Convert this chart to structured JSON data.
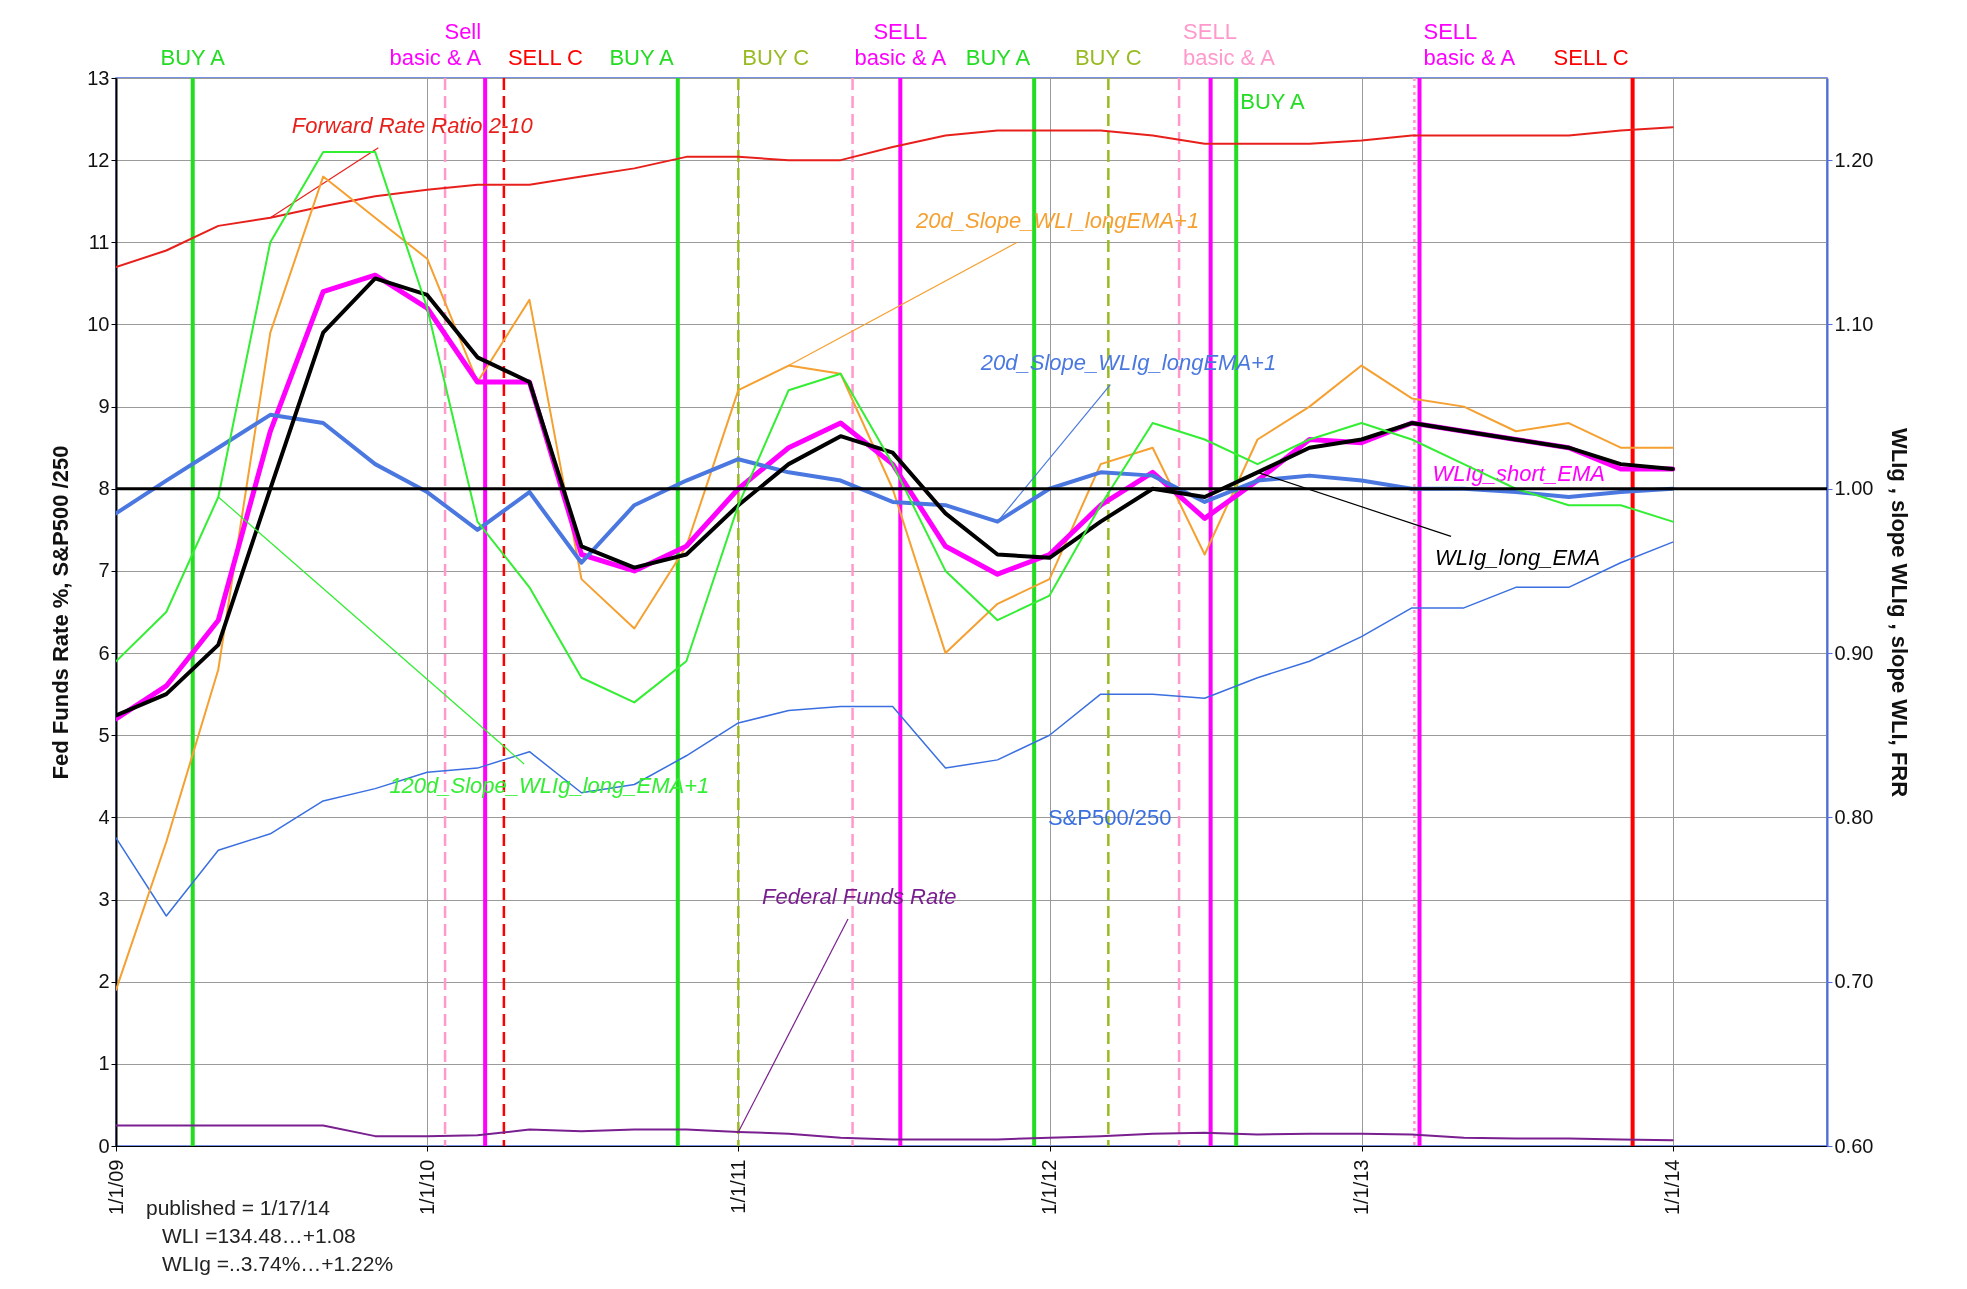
{
  "chart_data": {
    "type": "line",
    "ylabel": "Fed Funds Rate %,     S&P500 /250",
    "y2label": "WLIg ,  slope WLIg ,  slope WLI, FRR",
    "x": [
      "2009-01",
      "2009-03",
      "2009-05",
      "2009-07",
      "2009-09",
      "2009-11",
      "2010-01",
      "2010-03",
      "2010-05",
      "2010-07",
      "2010-09",
      "2010-11",
      "2011-01",
      "2011-03",
      "2011-05",
      "2011-07",
      "2011-09",
      "2011-11",
      "2012-01",
      "2012-03",
      "2012-05",
      "2012-07",
      "2012-09",
      "2012-11",
      "2013-01",
      "2013-03",
      "2013-05",
      "2013-07",
      "2013-09",
      "2013-11",
      "2014-01"
    ],
    "xlim": [
      "2009-01-01",
      "2014-07-01"
    ],
    "xticks": [
      {
        "value": "2009-01-01",
        "label": "1/1/09"
      },
      {
        "value": "2010-01-01",
        "label": "1/1/10"
      },
      {
        "value": "2011-01-01",
        "label": "1/1/11"
      },
      {
        "value": "2012-01-01",
        "label": "1/1/12"
      },
      {
        "value": "2013-01-01",
        "label": "1/1/13"
      },
      {
        "value": "2014-01-01",
        "label": "1/1/14"
      }
    ],
    "ylim": [
      0,
      13
    ],
    "yticks": [
      0,
      1,
      2,
      3,
      4,
      5,
      6,
      7,
      8,
      9,
      10,
      11,
      12,
      13
    ],
    "y2lim": [
      0.6,
      1.25
    ],
    "y2ticks": [
      {
        "value": 0.6,
        "label": "0.60"
      },
      {
        "value": 0.7,
        "label": "0.70"
      },
      {
        "value": 0.8,
        "label": "0.80"
      },
      {
        "value": 0.9,
        "label": "0.90"
      },
      {
        "value": 1.0,
        "label": "1.00"
      },
      {
        "value": 1.1,
        "label": "1.10"
      },
      {
        "value": 1.2,
        "label": "1.20"
      }
    ],
    "grid": true,
    "series": [
      {
        "name": "Forward Rate Ratio 2-10",
        "color": "#e8201c",
        "axis": "y2",
        "values": [
          1.135,
          1.145,
          1.16,
          1.165,
          1.172,
          1.178,
          1.182,
          1.185,
          1.185,
          1.19,
          1.195,
          1.202,
          1.202,
          1.2,
          1.2,
          1.208,
          1.215,
          1.218,
          1.218,
          1.218,
          1.215,
          1.21,
          1.21,
          1.21,
          1.212,
          1.215,
          1.215,
          1.215,
          1.215,
          1.218,
          1.22
        ]
      },
      {
        "name": "20d_Slope_WLI_longEMA+1",
        "color": "#f5a030",
        "axis": "y2",
        "values": [
          0.695,
          0.785,
          0.89,
          1.095,
          1.19,
          1.165,
          1.14,
          1.065,
          1.115,
          0.945,
          0.915,
          0.965,
          1.06,
          1.075,
          1.07,
          1.0,
          0.9,
          0.93,
          0.945,
          1.015,
          1.025,
          0.96,
          1.03,
          1.05,
          1.075,
          1.055,
          1.05,
          1.035,
          1.04,
          1.025,
          1.025
        ]
      },
      {
        "name": "WLIg_short_EMA",
        "color": "#ff00ff",
        "axis": "y2",
        "values": [
          0.86,
          0.88,
          0.92,
          1.035,
          1.12,
          1.13,
          1.11,
          1.065,
          1.065,
          0.96,
          0.95,
          0.965,
          1.0,
          1.025,
          1.04,
          1.015,
          0.965,
          0.948,
          0.96,
          0.99,
          1.01,
          0.982,
          1.005,
          1.03,
          1.028,
          1.04,
          1.035,
          1.03,
          1.025,
          1.012,
          1.012
        ]
      },
      {
        "name": "20d_Slope_WLIg_longEMA+1",
        "color": "#4a78e0",
        "axis": "y2",
        "values": [
          0.985,
          1.005,
          1.025,
          1.045,
          1.04,
          1.015,
          0.998,
          0.975,
          0.998,
          0.955,
          0.99,
          1.005,
          1.018,
          1.01,
          1.005,
          0.992,
          0.99,
          0.98,
          1.0,
          1.01,
          1.008,
          0.992,
          1.005,
          1.008,
          1.005,
          1.0,
          1.0,
          0.998,
          0.995,
          0.998,
          1.0
        ]
      },
      {
        "name": "WLIg_long_EMA",
        "color": "#000000",
        "axis": "y2",
        "values": [
          0.862,
          0.875,
          0.905,
          1.0,
          1.095,
          1.128,
          1.118,
          1.08,
          1.065,
          0.965,
          0.952,
          0.96,
          0.99,
          1.015,
          1.032,
          1.022,
          0.985,
          0.96,
          0.958,
          0.98,
          1.0,
          0.995,
          1.01,
          1.025,
          1.03,
          1.04,
          1.035,
          1.03,
          1.025,
          1.015,
          1.012
        ]
      },
      {
        "name": "120d_Slope_WLIg_long_EMA+1",
        "color": "#33ee33",
        "axis": "y2",
        "values": [
          0.895,
          0.925,
          0.995,
          1.15,
          1.205,
          1.205,
          1.11,
          0.98,
          0.94,
          0.885,
          0.87,
          0.895,
          0.99,
          1.06,
          1.07,
          1.015,
          0.95,
          0.92,
          0.935,
          0.99,
          1.04,
          1.03,
          1.015,
          1.03,
          1.04,
          1.03,
          1.015,
          1.0,
          0.99,
          0.99,
          0.98
        ]
      },
      {
        "name": "S&P500/250",
        "color": "#3a6fe0",
        "values": [
          3.75,
          2.8,
          3.6,
          3.8,
          4.2,
          4.35,
          4.55,
          4.6,
          4.8,
          4.3,
          4.4,
          4.75,
          5.15,
          5.3,
          5.35,
          5.35,
          4.6,
          4.7,
          5.0,
          5.5,
          5.5,
          5.45,
          5.7,
          5.9,
          6.2,
          6.55,
          6.55,
          6.8,
          6.8,
          7.1,
          7.35
        ]
      },
      {
        "name": "Federal Funds Rate",
        "color": "#7a1f8f",
        "values": [
          0.25,
          0.25,
          0.25,
          0.25,
          0.25,
          0.12,
          0.12,
          0.13,
          0.2,
          0.18,
          0.2,
          0.2,
          0.17,
          0.15,
          0.1,
          0.08,
          0.08,
          0.08,
          0.1,
          0.12,
          0.15,
          0.16,
          0.14,
          0.15,
          0.15,
          0.14,
          0.1,
          0.09,
          0.09,
          0.08,
          0.07
        ]
      }
    ],
    "ref_lines": [
      {
        "axis": "x",
        "value": "2009-04-01",
        "label": "BUY A",
        "color": "#22dd22",
        "line_style": "solid"
      },
      {
        "axis": "x",
        "value": "2010-01-22",
        "label": null,
        "color": "#ff99cc",
        "line_style": "dashed"
      },
      {
        "axis": "x",
        "value": "2010-03-10",
        "label": "Sell\nbasic & A",
        "color": "#ff00ff",
        "line_style": "solid"
      },
      {
        "axis": "x",
        "value": "2010-04-01",
        "label": "SELL C",
        "color": "#ff0000",
        "line_style": "dashed"
      },
      {
        "axis": "x",
        "value": "2010-10-22",
        "label": "BUY A",
        "color": "#22dd22",
        "line_style": "solid"
      },
      {
        "axis": "x",
        "value": "2011-01-01",
        "label": "BUY C",
        "color": "#99bb22",
        "line_style": "dashed"
      },
      {
        "axis": "x",
        "value": "2011-05-15",
        "label": null,
        "color": "#ff99cc",
        "line_style": "dashed"
      },
      {
        "axis": "x",
        "value": "2011-07-10",
        "label": "SELL\nbasic & A",
        "color": "#ff00ff",
        "line_style": "solid"
      },
      {
        "axis": "x",
        "value": "2011-12-14",
        "label": "BUY A",
        "color": "#22dd22",
        "line_style": "solid"
      },
      {
        "axis": "x",
        "value": "2012-03-10",
        "label": "BUY C",
        "color": "#99bb22",
        "line_style": "dashed"
      },
      {
        "axis": "x",
        "value": "2012-06-01",
        "label": "SELL\nbasic & A",
        "color": "#ff99cc",
        "line_style": "dashed"
      },
      {
        "axis": "x",
        "value": "2012-07-08",
        "label": null,
        "color": "#ff00ff",
        "line_style": "solid"
      },
      {
        "axis": "x",
        "value": "2012-08-07",
        "label": "BUY A",
        "color": "#22dd22",
        "line_style": "solid"
      },
      {
        "axis": "x",
        "value": "2013-03-04",
        "label": null,
        "color": "#ff99cc",
        "line_style": "dotted"
      },
      {
        "axis": "x",
        "value": "2013-03-10",
        "label": "SELL\nbasic & A",
        "color": "#ff00ff",
        "line_style": "solid"
      },
      {
        "axis": "x",
        "value": "2013-11-15",
        "label": "SELL C",
        "color": "#ff0000",
        "line_style": "solid"
      },
      {
        "axis": "y2",
        "value": 1.0,
        "color": "#000000",
        "line_style": "solid"
      }
    ],
    "annotations": [
      "published = 1/17/14",
      "WLI =134.48…+1.08",
      "WLIg =..3.74%…+1.22%"
    ]
  }
}
